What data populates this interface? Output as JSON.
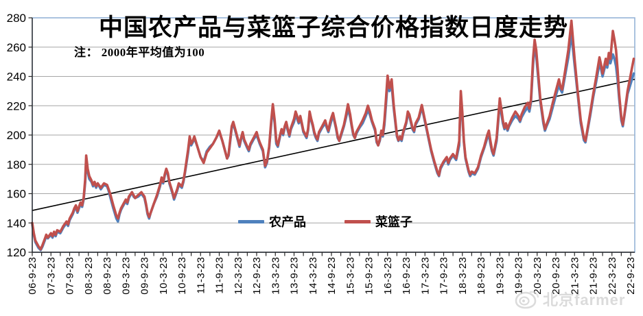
{
  "header": {
    "title": "中国农产品与菜篮子综合价格指数日度走势",
    "note": "注： 2000年平均值为100"
  },
  "legend": {
    "items": [
      {
        "label": "农产品",
        "color": "#4f81bd"
      },
      {
        "label": "菜篮子",
        "color": "#c0504d"
      }
    ]
  },
  "watermark": {
    "icon": "weibo-logo",
    "text": "北京farmer"
  },
  "colors": {
    "series_agri": "#4f81bd",
    "series_basket": "#c0504d",
    "trend": "#000000",
    "grid": "#a6a6a6",
    "axis": "#262626",
    "plot_border": "#95b3d7",
    "label": "#000000",
    "watermark": "#cdcdcd",
    "background": "#ffffff"
  },
  "chart_data": {
    "type": "line",
    "title": "中国农产品与菜篮子综合价格指数日度走势",
    "note": "注： 2000年平均值为100",
    "legend_position": "inside-bottom-center",
    "grid": true,
    "x_axis": {
      "unit": "months since 2006-09-23",
      "months_per_label": 6,
      "minor_tick_months": 3,
      "tick_labels": [
        "06-9-23",
        "07-3-23",
        "07-9-23",
        "08-3-23",
        "08-9-23",
        "09-3-23",
        "09-9-23",
        "10-3-23",
        "10-9-23",
        "11-3-23",
        "11-9-23",
        "12-3-23",
        "12-9-23",
        "13-3-23",
        "13-9-23",
        "14-3-23",
        "14-9-23",
        "15-3-23",
        "15-9-23",
        "16-3-23",
        "16-9-23",
        "17-3-23",
        "17-9-23",
        "18-3-23",
        "18-9-23",
        "19-3-23",
        "19-9-23",
        "20-3-23",
        "20-9-23",
        "21-3-23",
        "21-9-23",
        "22-3-23",
        "22-9-23"
      ]
    },
    "y_axis": {
      "min": 120,
      "max": 280,
      "tick_step": 20
    },
    "series": [
      {
        "name": "农产品",
        "color": "#4f81bd",
        "value_index": 1
      },
      {
        "name": "菜篮子",
        "color": "#c0504d",
        "value_index": 2
      }
    ],
    "points": [
      [
        0,
        139,
        140
      ],
      [
        0.5,
        132,
        133
      ],
      [
        1,
        127,
        128
      ],
      [
        2,
        123,
        124
      ],
      [
        2.7,
        121.5,
        122
      ],
      [
        3.3,
        124,
        125
      ],
      [
        4,
        128,
        129
      ],
      [
        4.5,
        131,
        132
      ],
      [
        5,
        129.5,
        130
      ],
      [
        6,
        132,
        133
      ],
      [
        6.5,
        130,
        131
      ],
      [
        7,
        133,
        134
      ],
      [
        7.5,
        131,
        132
      ],
      [
        8,
        134,
        135
      ],
      [
        9,
        133,
        134
      ],
      [
        10,
        137,
        138
      ],
      [
        11,
        140,
        141
      ],
      [
        11.5,
        138,
        139
      ],
      [
        12,
        142,
        143
      ],
      [
        13,
        146,
        147
      ],
      [
        13.5,
        149,
        150
      ],
      [
        14,
        151,
        152
      ],
      [
        14.5,
        147,
        148
      ],
      [
        15,
        150,
        151
      ],
      [
        15.5,
        153,
        154
      ],
      [
        16,
        151,
        152
      ],
      [
        16.5,
        156,
        157
      ],
      [
        17,
        168,
        170
      ],
      [
        17.3,
        183,
        186
      ],
      [
        17.8,
        175,
        177
      ],
      [
        18.3,
        170,
        172
      ],
      [
        19,
        168,
        169
      ],
      [
        19.5,
        165,
        166
      ],
      [
        20,
        167,
        168
      ],
      [
        20.5,
        164,
        165
      ],
      [
        21,
        167,
        167
      ],
      [
        22,
        163,
        164
      ],
      [
        23,
        166,
        167
      ],
      [
        24,
        165,
        166
      ],
      [
        24.5,
        162,
        163
      ],
      [
        25,
        158,
        160
      ],
      [
        26,
        150,
        152
      ],
      [
        27,
        143,
        145
      ],
      [
        27.5,
        141,
        143
      ],
      [
        28,
        146,
        147
      ],
      [
        28.5,
        149,
        150
      ],
      [
        29,
        151,
        152
      ],
      [
        30,
        155,
        156
      ],
      [
        30.5,
        153,
        154
      ],
      [
        31,
        157,
        158
      ],
      [
        32,
        161,
        161
      ],
      [
        32.5,
        158,
        159
      ],
      [
        33,
        157,
        157
      ],
      [
        34,
        158,
        159
      ],
      [
        35,
        160,
        161
      ],
      [
        36,
        157,
        158
      ],
      [
        36.5,
        152,
        153
      ],
      [
        37,
        146,
        147
      ],
      [
        37.5,
        143,
        144
      ],
      [
        38,
        147,
        147
      ],
      [
        39,
        153,
        153
      ],
      [
        40,
        158,
        159
      ],
      [
        41,
        165,
        166
      ],
      [
        41.5,
        170,
        171
      ],
      [
        42,
        167,
        168
      ],
      [
        42.5,
        172,
        173
      ],
      [
        43,
        176,
        177
      ],
      [
        43.5,
        173,
        174
      ],
      [
        44,
        167,
        168
      ],
      [
        45,
        160,
        161
      ],
      [
        45.5,
        156,
        157
      ],
      [
        46,
        159,
        160
      ],
      [
        46.5,
        162,
        163
      ],
      [
        47,
        166,
        167
      ],
      [
        48,
        164,
        165
      ],
      [
        48.5,
        168,
        169
      ],
      [
        49,
        174,
        175
      ],
      [
        50,
        188,
        190
      ],
      [
        50.5,
        197,
        199
      ],
      [
        51,
        193,
        194
      ],
      [
        51.5,
        195,
        196
      ],
      [
        52,
        198,
        199
      ],
      [
        53,
        192,
        192
      ],
      [
        54,
        185,
        185
      ],
      [
        55,
        182,
        181
      ],
      [
        56,
        189,
        188
      ],
      [
        57,
        192,
        191
      ],
      [
        58,
        194,
        194
      ],
      [
        59,
        198,
        198
      ],
      [
        60,
        202,
        203
      ],
      [
        61,
        196,
        196
      ],
      [
        62,
        188,
        188
      ],
      [
        62.5,
        184,
        184
      ],
      [
        63,
        186,
        187
      ],
      [
        64,
        205,
        206
      ],
      [
        64.5,
        207,
        209
      ],
      [
        65,
        204,
        205
      ],
      [
        66,
        196,
        197
      ],
      [
        66.5,
        192,
        193
      ],
      [
        67,
        197,
        198
      ],
      [
        67.5,
        201,
        202
      ],
      [
        68,
        196,
        197
      ],
      [
        69,
        191,
        192
      ],
      [
        69.5,
        189,
        190
      ],
      [
        70,
        193,
        194
      ],
      [
        71,
        197,
        198
      ],
      [
        72,
        200,
        202
      ],
      [
        72.5,
        197,
        198
      ],
      [
        73,
        194,
        195
      ],
      [
        74,
        189,
        190
      ],
      [
        74.7,
        178,
        179
      ],
      [
        75.3,
        181,
        182
      ],
      [
        76,
        191,
        192
      ],
      [
        76.7,
        208,
        210
      ],
      [
        77.2,
        219,
        221
      ],
      [
        77.8,
        208,
        210
      ],
      [
        78.3,
        194,
        196
      ],
      [
        78.8,
        192,
        193
      ],
      [
        79.5,
        199,
        200
      ],
      [
        80,
        203,
        204
      ],
      [
        80.5,
        200,
        201
      ],
      [
        81,
        205,
        206
      ],
      [
        81.5,
        207,
        209
      ],
      [
        82,
        203,
        204
      ],
      [
        82.5,
        199,
        200
      ],
      [
        83,
        204,
        205
      ],
      [
        84,
        209,
        211
      ],
      [
        84.5,
        214,
        216
      ],
      [
        85,
        211,
        213
      ],
      [
        85.5,
        208,
        209
      ],
      [
        86,
        211,
        213
      ],
      [
        86.5,
        207,
        208
      ],
      [
        87,
        202,
        203
      ],
      [
        88,
        198,
        199
      ],
      [
        88.5,
        203,
        204
      ],
      [
        89,
        214,
        216
      ],
      [
        89.5,
        210,
        211
      ],
      [
        90,
        206,
        207
      ],
      [
        90.5,
        201,
        202
      ],
      [
        91,
        198,
        199
      ],
      [
        91.5,
        196,
        197
      ],
      [
        92,
        201,
        202
      ],
      [
        93,
        205,
        206
      ],
      [
        94,
        208,
        210
      ],
      [
        94.5,
        205,
        206
      ],
      [
        95,
        202,
        203
      ],
      [
        95.5,
        206,
        208
      ],
      [
        96,
        210,
        212
      ],
      [
        96.5,
        213,
        215
      ],
      [
        97,
        209,
        210
      ],
      [
        97.5,
        204,
        205
      ],
      [
        98,
        198,
        199
      ],
      [
        98.5,
        196,
        196
      ],
      [
        99,
        199,
        200
      ],
      [
        100,
        206,
        207
      ],
      [
        100.7,
        212,
        214
      ],
      [
        101.3,
        218,
        221
      ],
      [
        102,
        212,
        214
      ],
      [
        102.5,
        206,
        207
      ],
      [
        103,
        200,
        201
      ],
      [
        103.5,
        198,
        198
      ],
      [
        104,
        201,
        202
      ],
      [
        105,
        205,
        206
      ],
      [
        106,
        208,
        210
      ],
      [
        107,
        213,
        215
      ],
      [
        107.7,
        217,
        220
      ],
      [
        108.3,
        214,
        216
      ],
      [
        109,
        209,
        210
      ],
      [
        110,
        203,
        204
      ],
      [
        110.5,
        195,
        196
      ],
      [
        111,
        193,
        193
      ],
      [
        111.5,
        196,
        197
      ],
      [
        112,
        202,
        203
      ],
      [
        112.5,
        199,
        200
      ],
      [
        113,
        207,
        210
      ],
      [
        113.5,
        221,
        225
      ],
      [
        114,
        236,
        240.5
      ],
      [
        114.6,
        230,
        232
      ],
      [
        115.3,
        234,
        238
      ],
      [
        116,
        218,
        220
      ],
      [
        117,
        199,
        200
      ],
      [
        117.5,
        196,
        196.5
      ],
      [
        118,
        198,
        199
      ],
      [
        118.5,
        196,
        197
      ],
      [
        119,
        201,
        202
      ],
      [
        120,
        208,
        209
      ],
      [
        120.5,
        214,
        216
      ],
      [
        121,
        213,
        214
      ],
      [
        122,
        204,
        205
      ],
      [
        122.5,
        202,
        203
      ],
      [
        123,
        207,
        208
      ],
      [
        124,
        211,
        212
      ],
      [
        125,
        219,
        220.5
      ],
      [
        126,
        209,
        210
      ],
      [
        127,
        199,
        200
      ],
      [
        128,
        189,
        190
      ],
      [
        129,
        181,
        182
      ],
      [
        130,
        174,
        175
      ],
      [
        130.5,
        172,
        172.5
      ],
      [
        131,
        177,
        178
      ],
      [
        132,
        181,
        182
      ],
      [
        133,
        184,
        185
      ],
      [
        133.5,
        180,
        181
      ],
      [
        134,
        183,
        184
      ],
      [
        135,
        186,
        187
      ],
      [
        136,
        183,
        184
      ],
      [
        137,
        193,
        196
      ],
      [
        137.5,
        227,
        230
      ],
      [
        138,
        212,
        215
      ],
      [
        138.5,
        195,
        196
      ],
      [
        139,
        184,
        185
      ],
      [
        140,
        175,
        176
      ],
      [
        140.5,
        172,
        173
      ],
      [
        141,
        174,
        175
      ],
      [
        142,
        173,
        174
      ],
      [
        143,
        177,
        178
      ],
      [
        144,
        185,
        186
      ],
      [
        145,
        191,
        192
      ],
      [
        146,
        198,
        200
      ],
      [
        146.5,
        201,
        203
      ],
      [
        147,
        194,
        196
      ],
      [
        147.5,
        189,
        190
      ],
      [
        148,
        186,
        187
      ],
      [
        149,
        196,
        198
      ],
      [
        150,
        222,
        225
      ],
      [
        150.5,
        215,
        218
      ],
      [
        151,
        208,
        210
      ],
      [
        151.5,
        204,
        205
      ],
      [
        152,
        207,
        208
      ],
      [
        152.5,
        203,
        204
      ],
      [
        153,
        206,
        207
      ],
      [
        154,
        210,
        212
      ],
      [
        155,
        213,
        216
      ],
      [
        156,
        211,
        213
      ],
      [
        156.5,
        209,
        210
      ],
      [
        157,
        212,
        214
      ],
      [
        158,
        216,
        219
      ],
      [
        159,
        219,
        222
      ],
      [
        159.5,
        216,
        218
      ],
      [
        160,
        222,
        224
      ],
      [
        160.7,
        248,
        252
      ],
      [
        161.2,
        261,
        265
      ],
      [
        161.7,
        254,
        258
      ],
      [
        162.3,
        240,
        243
      ],
      [
        163,
        223,
        225
      ],
      [
        164,
        208,
        210
      ],
      [
        164.5,
        203,
        204
      ],
      [
        165,
        206,
        207
      ],
      [
        166,
        211,
        213
      ],
      [
        167,
        219,
        222
      ],
      [
        168,
        227,
        230
      ],
      [
        169,
        234,
        238
      ],
      [
        169.5,
        231,
        233
      ],
      [
        170,
        229,
        231
      ],
      [
        171,
        241,
        244
      ],
      [
        172,
        253,
        258
      ],
      [
        173,
        269,
        278
      ],
      [
        174,
        248,
        252
      ],
      [
        175,
        228,
        230
      ],
      [
        176,
        208,
        210
      ],
      [
        177,
        196.5,
        198
      ],
      [
        177.5,
        195,
        196
      ],
      [
        178,
        201,
        202
      ],
      [
        179,
        213,
        215
      ],
      [
        180,
        226,
        228
      ],
      [
        181,
        237,
        240
      ],
      [
        182,
        249,
        253
      ],
      [
        182.5,
        245,
        248
      ],
      [
        183,
        240,
        242
      ],
      [
        184,
        249,
        252
      ],
      [
        184.5,
        246,
        248
      ],
      [
        185,
        252,
        256
      ],
      [
        185.5,
        249,
        252
      ],
      [
        186.3,
        255,
        271
      ],
      [
        186.8,
        252,
        265
      ],
      [
        187.3,
        247,
        258
      ],
      [
        187.8,
        238,
        245
      ],
      [
        188.3,
        225,
        228
      ],
      [
        189,
        210,
        212
      ],
      [
        189.5,
        206,
        207
      ],
      [
        190,
        213,
        214
      ],
      [
        191,
        228,
        230
      ],
      [
        193,
        242,
        252
      ]
    ],
    "trendline": {
      "name": "linear-trend",
      "color": "#000000",
      "points": [
        [
          0,
          148.5
        ],
        [
          193.3,
          238
        ]
      ]
    }
  }
}
